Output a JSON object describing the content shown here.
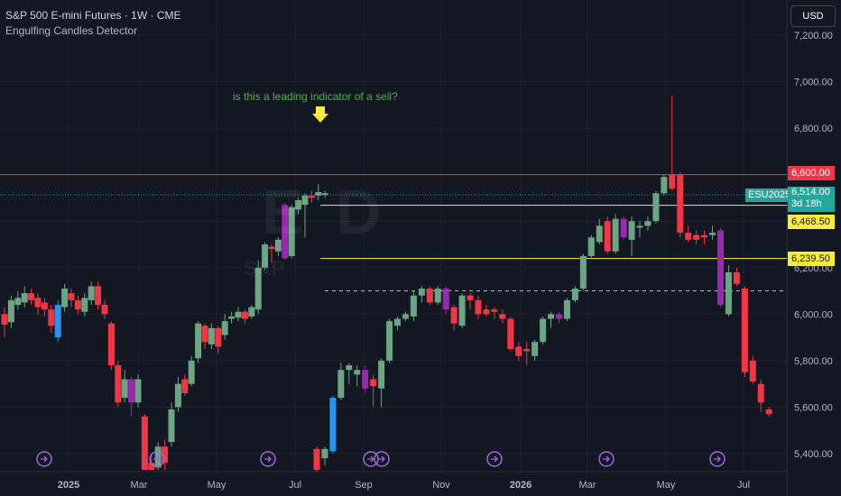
{
  "header": {
    "title": "S&P 500 E-mini Futures · 1W · CME",
    "indicator": "Engulfing Candles Detector"
  },
  "currency_button": "USD",
  "annotation": "is this a leading indicator of a sell?",
  "price_tags": {
    "level_red": "6,600.00",
    "last_price": "6,514.00",
    "countdown": "3d 18h",
    "contract": "ESU2025",
    "yellow_upper": "6,468.50",
    "yellow_lower": "6,239.50"
  },
  "colors": {
    "background": "#131722",
    "bull": "#6ba583",
    "bear": "#f23645",
    "engulf_bull": "#2196f3",
    "engulf_bear": "#9c27b0",
    "red_line": "#f23645",
    "yellow_line": "#fbeb3b"
  },
  "chart_data": {
    "type": "candlestick",
    "title": "S&P 500 E-mini Futures · 1W · CME",
    "y_ticks": [
      5400,
      5600,
      5800,
      6000,
      6200,
      6400,
      6600,
      6800,
      7000,
      7200
    ],
    "y_tick_labels": [
      "5,400.00",
      "5,600.00",
      "5,800.00",
      "6,000.00",
      "6,200.00",
      "6,400.00",
      "6,600.00",
      "6,800.00",
      "7,000.00",
      "7,200.00"
    ],
    "ylim": [
      5330,
      7270
    ],
    "x_labels": [
      "2025",
      "Mar",
      "May",
      "Jul",
      "Sep",
      "Nov",
      "2026",
      "Mar",
      "May",
      "Jul"
    ],
    "horizontal_levels": {
      "red": 6600,
      "yellow_upper": 6468.5,
      "yellow_lower": 6239.5,
      "dotted": 6100
    },
    "candles": [
      {
        "o": 6000,
        "c": 5955,
        "h": 6030,
        "l": 5900,
        "k": "bear"
      },
      {
        "o": 5965,
        "c": 6060,
        "h": 6080,
        "l": 5940,
        "k": "bull"
      },
      {
        "o": 6040,
        "c": 6070,
        "h": 6100,
        "l": 6020,
        "k": "bull"
      },
      {
        "o": 6050,
        "c": 6090,
        "h": 6120,
        "l": 6030,
        "k": "bull"
      },
      {
        "o": 6090,
        "c": 6060,
        "h": 6110,
        "l": 6040,
        "k": "bear"
      },
      {
        "o": 6070,
        "c": 6030,
        "h": 6090,
        "l": 6000,
        "k": "bear"
      },
      {
        "o": 6050,
        "c": 6020,
        "h": 6070,
        "l": 5990,
        "k": "bear"
      },
      {
        "o": 6020,
        "c": 5950,
        "h": 6040,
        "l": 5920,
        "k": "bear"
      },
      {
        "o": 5900,
        "c": 6040,
        "h": 6060,
        "l": 5880,
        "k": "ebull"
      },
      {
        "o": 6030,
        "c": 6110,
        "h": 6130,
        "l": 6010,
        "k": "bull"
      },
      {
        "o": 6090,
        "c": 6060,
        "h": 6110,
        "l": 6030,
        "k": "bear"
      },
      {
        "o": 6060,
        "c": 6020,
        "h": 6080,
        "l": 6000,
        "k": "bear"
      },
      {
        "o": 6010,
        "c": 6070,
        "h": 6090,
        "l": 5990,
        "k": "bull"
      },
      {
        "o": 6060,
        "c": 6120,
        "h": 6140,
        "l": 6040,
        "k": "bull"
      },
      {
        "o": 6120,
        "c": 6040,
        "h": 6140,
        "l": 6020,
        "k": "bear"
      },
      {
        "o": 6040,
        "c": 6000,
        "h": 6060,
        "l": 5980,
        "k": "bear"
      },
      {
        "o": 5960,
        "c": 5780,
        "h": 5970,
        "l": 5760,
        "k": "bear"
      },
      {
        "o": 5780,
        "c": 5620,
        "h": 5800,
        "l": 5600,
        "k": "bear"
      },
      {
        "o": 5640,
        "c": 5720,
        "h": 5760,
        "l": 5620,
        "k": "bull"
      },
      {
        "o": 5720,
        "c": 5620,
        "h": 5730,
        "l": 5560,
        "k": "ebear"
      },
      {
        "o": 5620,
        "c": 5720,
        "h": 5740,
        "l": 5600,
        "k": "bull"
      },
      {
        "o": 5560,
        "c": 5330,
        "h": 5570,
        "l": 5330,
        "k": "bear"
      },
      {
        "o": 5330,
        "c": 5360,
        "h": 5400,
        "l": 5330,
        "k": "bear"
      },
      {
        "o": 5340,
        "c": 5430,
        "h": 5450,
        "l": 5330,
        "k": "bull"
      },
      {
        "o": 5430,
        "c": 5360,
        "h": 5460,
        "l": 5330,
        "k": "bear"
      },
      {
        "o": 5450,
        "c": 5590,
        "h": 5620,
        "l": 5430,
        "k": "bull"
      },
      {
        "o": 5600,
        "c": 5700,
        "h": 5730,
        "l": 5580,
        "k": "bull"
      },
      {
        "o": 5720,
        "c": 5660,
        "h": 5740,
        "l": 5650,
        "k": "bear"
      },
      {
        "o": 5700,
        "c": 5800,
        "h": 5820,
        "l": 5690,
        "k": "bull"
      },
      {
        "o": 5810,
        "c": 5960,
        "h": 5970,
        "l": 5790,
        "k": "bull"
      },
      {
        "o": 5950,
        "c": 5880,
        "h": 5960,
        "l": 5850,
        "k": "bear"
      },
      {
        "o": 5870,
        "c": 5940,
        "h": 5960,
        "l": 5850,
        "k": "bull"
      },
      {
        "o": 5940,
        "c": 5860,
        "h": 5950,
        "l": 5830,
        "k": "bear"
      },
      {
        "o": 5910,
        "c": 5970,
        "h": 6000,
        "l": 5890,
        "k": "bull"
      },
      {
        "o": 5980,
        "c": 5990,
        "h": 6010,
        "l": 5960,
        "k": "bull"
      },
      {
        "o": 5985,
        "c": 6010,
        "h": 6030,
        "l": 5970,
        "k": "bull"
      },
      {
        "o": 6010,
        "c": 5980,
        "h": 6020,
        "l": 5960,
        "k": "bear"
      },
      {
        "o": 5990,
        "c": 6030,
        "h": 6040,
        "l": 5980,
        "k": "bull"
      },
      {
        "o": 6020,
        "c": 6200,
        "h": 6230,
        "l": 6000,
        "k": "bull"
      },
      {
        "o": 6200,
        "c": 6300,
        "h": 6310,
        "l": 6190,
        "k": "bull"
      },
      {
        "o": 6290,
        "c": 6280,
        "h": 6300,
        "l": 6220,
        "k": "bear"
      },
      {
        "o": 6270,
        "c": 6320,
        "h": 6330,
        "l": 6250,
        "k": "bull"
      },
      {
        "o": 6240,
        "c": 6470,
        "h": 6480,
        "l": 6235,
        "k": "ebear"
      },
      {
        "o": 6250,
        "c": 6460,
        "h": 6470,
        "l": 6240,
        "k": "bull"
      },
      {
        "o": 6450,
        "c": 6490,
        "h": 6500,
        "l": 6430,
        "k": "bull"
      },
      {
        "o": 6470,
        "c": 6510,
        "h": 6520,
        "l": 6330,
        "k": "bull"
      },
      {
        "o": 6500,
        "c": 6510,
        "h": 6530,
        "l": 6480,
        "k": "bear"
      },
      {
        "o": 6510,
        "c": 6525,
        "h": 6560,
        "l": 6490,
        "k": "bull"
      },
      {
        "o": 6514,
        "c": 6520,
        "h": 6530,
        "l": 6500,
        "k": "bull"
      }
    ],
    "candles_right": [
      {
        "o": 5330,
        "c": 5420,
        "h": 5430,
        "l": 5320,
        "k": "bear"
      },
      {
        "o": 5420,
        "c": 5380,
        "h": 5430,
        "l": 5350,
        "k": "bull"
      },
      {
        "o": 5410,
        "c": 5640,
        "h": 5650,
        "l": 5400,
        "k": "ebull"
      },
      {
        "o": 5640,
        "c": 5760,
        "h": 5790,
        "l": 5630,
        "k": "bull"
      },
      {
        "o": 5760,
        "c": 5780,
        "h": 5790,
        "l": 5700,
        "k": "bull"
      },
      {
        "o": 5760,
        "c": 5740,
        "h": 5780,
        "l": 5690,
        "k": "bull"
      },
      {
        "o": 5760,
        "c": 5680,
        "h": 5780,
        "l": 5660,
        "k": "ebear"
      },
      {
        "o": 5690,
        "c": 5720,
        "h": 5740,
        "l": 5600,
        "k": "bear"
      },
      {
        "o": 5680,
        "c": 5800,
        "h": 5810,
        "l": 5600,
        "k": "bull"
      },
      {
        "o": 5800,
        "c": 5970,
        "h": 5980,
        "l": 5790,
        "k": "bull"
      },
      {
        "o": 5950,
        "c": 5980,
        "h": 5990,
        "l": 5930,
        "k": "bull"
      },
      {
        "o": 5980,
        "c": 6000,
        "h": 6010,
        "l": 5970,
        "k": "bull"
      },
      {
        "o": 5990,
        "c": 6080,
        "h": 6100,
        "l": 5970,
        "k": "bull"
      },
      {
        "o": 6080,
        "c": 6110,
        "h": 6120,
        "l": 6050,
        "k": "bull"
      },
      {
        "o": 6110,
        "c": 6050,
        "h": 6120,
        "l": 6040,
        "k": "bear"
      },
      {
        "o": 6050,
        "c": 6110,
        "h": 6120,
        "l": 6040,
        "k": "bull"
      },
      {
        "o": 6110,
        "c": 6020,
        "h": 6120,
        "l": 6000,
        "k": "ebear"
      },
      {
        "o": 6030,
        "c": 5960,
        "h": 6040,
        "l": 5930,
        "k": "bear"
      },
      {
        "o": 5950,
        "c": 6080,
        "h": 6090,
        "l": 5940,
        "k": "bull"
      },
      {
        "o": 6080,
        "c": 6060,
        "h": 6090,
        "l": 6020,
        "k": "bear"
      },
      {
        "o": 6060,
        "c": 6000,
        "h": 6080,
        "l": 5980,
        "k": "bear"
      },
      {
        "o": 6000,
        "c": 6020,
        "h": 6040,
        "l": 5990,
        "k": "bear"
      },
      {
        "o": 6010,
        "c": 6020,
        "h": 6030,
        "l": 5980,
        "k": "bear"
      },
      {
        "o": 6000,
        "c": 5980,
        "h": 6020,
        "l": 5960,
        "k": "bear"
      },
      {
        "o": 5980,
        "c": 5850,
        "h": 5990,
        "l": 5840,
        "k": "bear"
      },
      {
        "o": 5860,
        "c": 5820,
        "h": 5880,
        "l": 5800,
        "k": "bear"
      },
      {
        "o": 5840,
        "c": 5850,
        "h": 5880,
        "l": 5780,
        "k": "bear"
      },
      {
        "o": 5820,
        "c": 5880,
        "h": 5890,
        "l": 5800,
        "k": "bull"
      },
      {
        "o": 5880,
        "c": 5980,
        "h": 5990,
        "l": 5870,
        "k": "bull"
      },
      {
        "o": 5980,
        "c": 6000,
        "h": 6010,
        "l": 5940,
        "k": "bull"
      },
      {
        "o": 6000,
        "c": 5980,
        "h": 6010,
        "l": 5960,
        "k": "ebear"
      },
      {
        "o": 5980,
        "c": 6060,
        "h": 6070,
        "l": 5970,
        "k": "bull"
      },
      {
        "o": 6060,
        "c": 6110,
        "h": 6120,
        "l": 6050,
        "k": "bull"
      },
      {
        "o": 6110,
        "c": 6250,
        "h": 6260,
        "l": 6100,
        "k": "bull"
      },
      {
        "o": 6250,
        "c": 6330,
        "h": 6340,
        "l": 6240,
        "k": "bull"
      },
      {
        "o": 6310,
        "c": 6380,
        "h": 6410,
        "l": 6300,
        "k": "bull"
      },
      {
        "o": 6400,
        "c": 6270,
        "h": 6420,
        "l": 6260,
        "k": "bear"
      },
      {
        "o": 6270,
        "c": 6410,
        "h": 6430,
        "l": 6260,
        "k": "bull"
      },
      {
        "o": 6410,
        "c": 6330,
        "h": 6420,
        "l": 6320,
        "k": "ebear"
      },
      {
        "o": 6320,
        "c": 6400,
        "h": 6420,
        "l": 6250,
        "k": "bull"
      },
      {
        "o": 6380,
        "c": 6380,
        "h": 6400,
        "l": 6330,
        "k": "bull"
      },
      {
        "o": 6380,
        "c": 6400,
        "h": 6420,
        "l": 6360,
        "k": "bull"
      },
      {
        "o": 6400,
        "c": 6520,
        "h": 6530,
        "l": 6390,
        "k": "bull"
      },
      {
        "o": 6520,
        "c": 6590,
        "h": 6600,
        "l": 6510,
        "k": "bull"
      },
      {
        "o": 6600,
        "c": 6540,
        "h": 6940,
        "l": 6530,
        "k": "bear"
      },
      {
        "o": 6600,
        "c": 6350,
        "h": 6610,
        "l": 6330,
        "k": "bear"
      },
      {
        "o": 6350,
        "c": 6320,
        "h": 6380,
        "l": 6310,
        "k": "bear"
      },
      {
        "o": 6340,
        "c": 6320,
        "h": 6360,
        "l": 6300,
        "k": "bear"
      },
      {
        "o": 6330,
        "c": 6340,
        "h": 6360,
        "l": 6300,
        "k": "bear"
      },
      {
        "o": 6340,
        "c": 6350,
        "h": 6380,
        "l": 6320,
        "k": "bull"
      },
      {
        "o": 6360,
        "c": 6040,
        "h": 6370,
        "l": 6030,
        "k": "ebear"
      },
      {
        "o": 6000,
        "c": 6180,
        "h": 6210,
        "l": 5990,
        "k": "bull"
      },
      {
        "o": 6180,
        "c": 6130,
        "h": 6200,
        "l": 6120,
        "k": "bear"
      },
      {
        "o": 6110,
        "c": 5750,
        "h": 6120,
        "l": 5730,
        "k": "bear"
      },
      {
        "o": 5800,
        "c": 5710,
        "h": 5820,
        "l": 5700,
        "k": "bear"
      },
      {
        "o": 5700,
        "c": 5620,
        "h": 5720,
        "l": 5580,
        "k": "bear"
      },
      {
        "o": 5590,
        "c": 5570,
        "h": 5600,
        "l": 5560,
        "k": "bear"
      }
    ]
  }
}
